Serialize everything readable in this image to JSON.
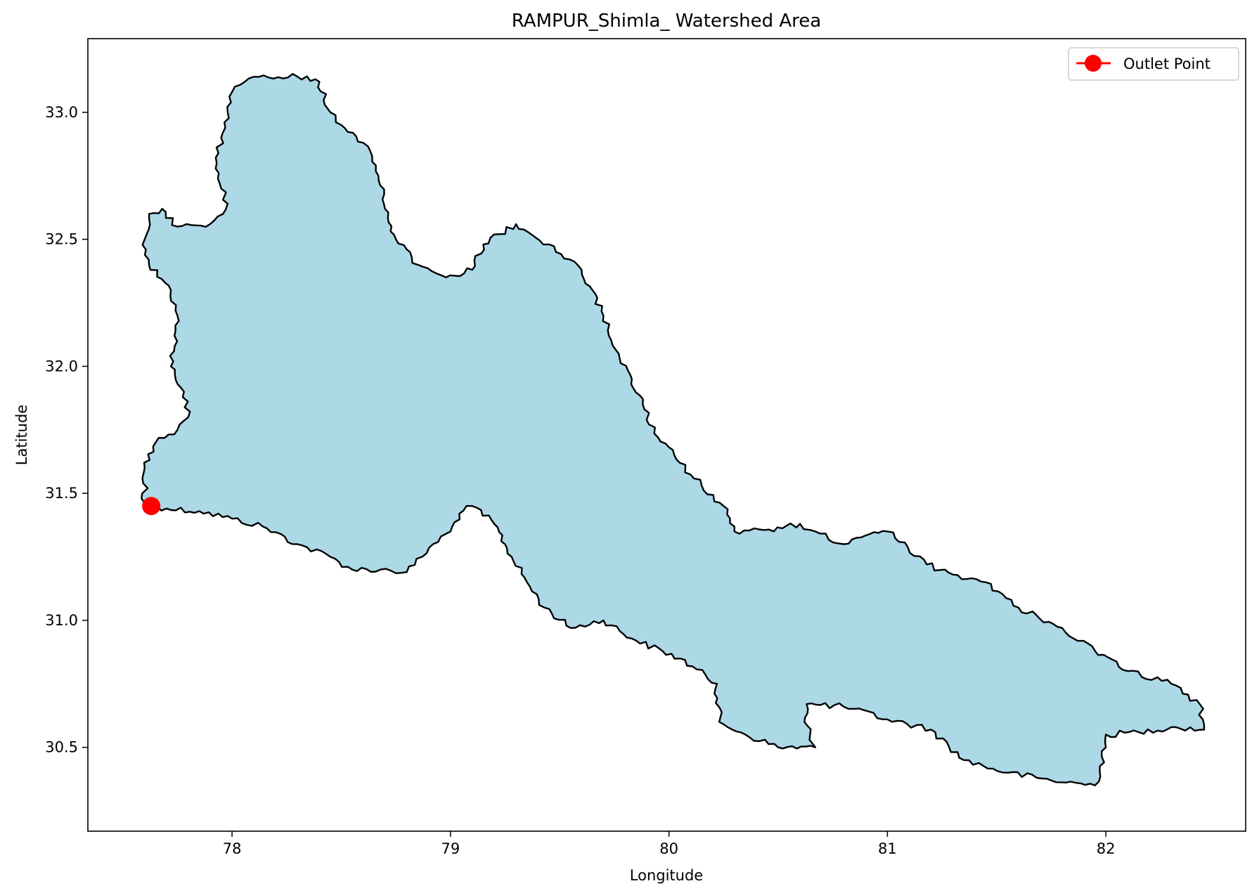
{
  "chart_data": {
    "type": "map",
    "title": "RAMPUR_Shimla_ Watershed Area",
    "xlabel": "Longitude",
    "ylabel": "Latitude",
    "xlim": [
      77.34,
      82.64
    ],
    "ylim": [
      30.17,
      33.29
    ],
    "xticks": [
      78,
      79,
      80,
      81,
      82
    ],
    "yticks": [
      30.5,
      31.0,
      31.5,
      32.0,
      32.5,
      33.0
    ],
    "xtick_labels": [
      "78",
      "79",
      "80",
      "81",
      "82"
    ],
    "ytick_labels": [
      "30.5",
      "31.0",
      "31.5",
      "32.0",
      "32.5",
      "33.0"
    ],
    "grid": false,
    "legend": {
      "placement": "top-right",
      "entries": [
        {
          "label": "Outlet Point",
          "color": "#ff0000",
          "marker": "circle"
        }
      ]
    },
    "watershed": {
      "fill": "#add8e6",
      "stroke": "#000000",
      "boundary": [
        [
          77.6,
          31.46
        ],
        [
          77.7,
          31.44
        ],
        [
          77.85,
          31.43
        ],
        [
          78.0,
          31.4
        ],
        [
          78.14,
          31.37
        ],
        [
          78.3,
          31.3
        ],
        [
          78.45,
          31.25
        ],
        [
          78.55,
          31.2
        ],
        [
          78.68,
          31.2
        ],
        [
          78.8,
          31.19
        ],
        [
          78.87,
          31.25
        ],
        [
          78.92,
          31.3
        ],
        [
          79.0,
          31.35
        ],
        [
          79.04,
          31.42
        ],
        [
          79.1,
          31.45
        ],
        [
          79.2,
          31.38
        ],
        [
          79.28,
          31.25
        ],
        [
          79.35,
          31.15
        ],
        [
          79.43,
          31.05
        ],
        [
          79.55,
          30.97
        ],
        [
          79.7,
          31.0
        ],
        [
          79.85,
          30.92
        ],
        [
          80.05,
          30.85
        ],
        [
          80.22,
          30.75
        ],
        [
          80.23,
          30.6
        ],
        [
          80.35,
          30.55
        ],
        [
          80.5,
          30.5
        ],
        [
          80.67,
          30.5
        ],
        [
          80.62,
          30.6
        ],
        [
          80.63,
          30.67
        ],
        [
          80.8,
          30.66
        ],
        [
          81.0,
          30.61
        ],
        [
          81.2,
          30.57
        ],
        [
          81.35,
          30.45
        ],
        [
          81.55,
          30.4
        ],
        [
          81.75,
          30.37
        ],
        [
          81.95,
          30.35
        ],
        [
          82.0,
          30.5
        ],
        [
          82.0,
          30.55
        ],
        [
          82.15,
          30.56
        ],
        [
          82.3,
          30.58
        ],
        [
          82.45,
          30.57
        ],
        [
          82.43,
          30.67
        ],
        [
          82.3,
          30.75
        ],
        [
          82.1,
          30.8
        ],
        [
          81.95,
          30.88
        ],
        [
          81.8,
          30.97
        ],
        [
          81.6,
          31.05
        ],
        [
          81.45,
          31.15
        ],
        [
          81.3,
          31.18
        ],
        [
          81.18,
          31.22
        ],
        [
          81.0,
          31.35
        ],
        [
          80.92,
          31.34
        ],
        [
          80.8,
          31.3
        ],
        [
          80.67,
          31.35
        ],
        [
          80.6,
          31.38
        ],
        [
          80.48,
          31.35
        ],
        [
          80.3,
          31.35
        ],
        [
          80.25,
          31.45
        ],
        [
          80.15,
          31.53
        ],
        [
          80.05,
          31.62
        ],
        [
          79.95,
          31.72
        ],
        [
          79.88,
          31.85
        ],
        [
          79.83,
          31.95
        ],
        [
          79.77,
          32.05
        ],
        [
          79.7,
          32.2
        ],
        [
          79.65,
          32.3
        ],
        [
          79.6,
          32.38
        ],
        [
          79.45,
          32.48
        ],
        [
          79.3,
          32.56
        ],
        [
          79.15,
          32.48
        ],
        [
          79.1,
          32.38
        ],
        [
          78.98,
          32.35
        ],
        [
          78.85,
          32.4
        ],
        [
          78.75,
          32.5
        ],
        [
          78.7,
          32.62
        ],
        [
          78.67,
          32.75
        ],
        [
          78.6,
          32.88
        ],
        [
          78.5,
          32.95
        ],
        [
          78.45,
          33.0
        ],
        [
          78.4,
          33.12
        ],
        [
          78.3,
          33.14
        ],
        [
          78.1,
          33.14
        ],
        [
          78.0,
          33.08
        ],
        [
          77.98,
          33.0
        ],
        [
          77.95,
          32.9
        ],
        [
          77.93,
          32.8
        ],
        [
          77.95,
          32.7
        ],
        [
          77.98,
          32.64
        ],
        [
          77.9,
          32.56
        ],
        [
          77.75,
          32.55
        ],
        [
          77.68,
          32.62
        ],
        [
          77.62,
          32.6
        ],
        [
          77.6,
          32.5
        ],
        [
          77.62,
          32.4
        ],
        [
          77.72,
          32.3
        ],
        [
          77.75,
          32.2
        ],
        [
          77.72,
          32.0
        ],
        [
          77.78,
          31.9
        ],
        [
          77.8,
          31.8
        ],
        [
          77.75,
          31.75
        ],
        [
          77.65,
          31.7
        ],
        [
          77.6,
          31.6
        ]
      ]
    },
    "outlet_point": {
      "lon": 77.63,
      "lat": 31.45,
      "color": "#ff0000"
    }
  }
}
